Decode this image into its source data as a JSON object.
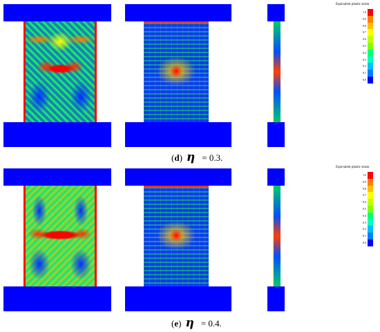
{
  "panels": [
    {
      "id": "d",
      "label": "d",
      "eta_symbol": "η",
      "value_text": "= 0.3."
    },
    {
      "id": "e",
      "label": "e",
      "eta_symbol": "η",
      "value_text": "= 0.4."
    }
  ],
  "legend": {
    "title": "Equivalent plastic strain",
    "ticks": [
      "1.0",
      "0.9",
      "0.8",
      "0.7",
      "0.6",
      "0.5",
      "0.4",
      "0.3",
      "0.2",
      "0.1",
      "0.0"
    ],
    "colors": [
      "#ff0000",
      "#ff7f00",
      "#ffbf00",
      "#ffff00",
      "#bfff00",
      "#7fff00",
      "#00ff7f",
      "#00ffbf",
      "#00bfff",
      "#007fff",
      "#0000ff"
    ]
  }
}
